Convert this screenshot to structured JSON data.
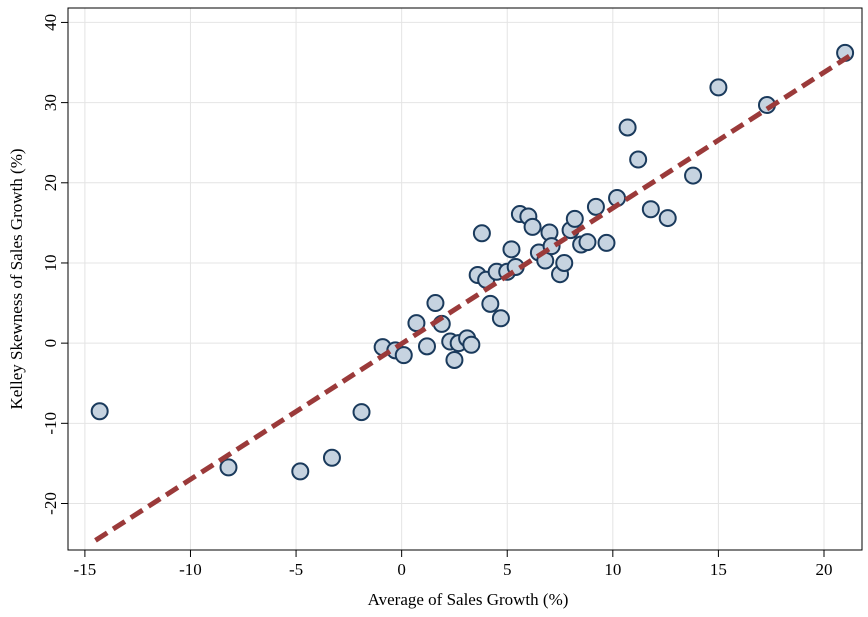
{
  "chart_data": {
    "type": "scatter",
    "xlabel": "Average of Sales Growth (%)",
    "ylabel": "Kelley Skewness of Sales Growth (%)",
    "x": [
      -14.3,
      -8.2,
      -4.8,
      -3.3,
      -1.9,
      -0.9,
      -0.3,
      0.1,
      0.7,
      1.2,
      1.6,
      1.9,
      2.3,
      2.5,
      2.7,
      3.1,
      3.3,
      3.6,
      3.8,
      4.0,
      4.2,
      4.5,
      4.7,
      5.0,
      5.2,
      5.4,
      5.6,
      6.0,
      6.2,
      6.5,
      6.8,
      7.0,
      7.1,
      7.5,
      7.7,
      8.0,
      8.2,
      8.5,
      8.8,
      9.2,
      9.7,
      10.2,
      10.7,
      11.2,
      11.8,
      12.6,
      13.8,
      15.0,
      17.3,
      21.0
    ],
    "values": [
      -8.5,
      -15.5,
      -16,
      -14.3,
      -8.6,
      -0.5,
      -0.9,
      -1.5,
      2.5,
      -0.4,
      5.0,
      2.4,
      0.2,
      -2.1,
      0,
      0.6,
      -0.2,
      8.5,
      13.7,
      7.9,
      4.9,
      8.9,
      3.1,
      8.9,
      11.7,
      9.5,
      16.1,
      15.8,
      14.5,
      11.3,
      10.3,
      13.8,
      12.1,
      8.6,
      10,
      14.1,
      15.5,
      12.3,
      12.6,
      17,
      12.5,
      18.1,
      26.9,
      22.9,
      16.7,
      15.6,
      20.9,
      31.9,
      29.7,
      36.2
    ],
    "color": "#c6d3e0",
    "edge_color": "#1a3a5c",
    "fit": {
      "x": [
        -14.5,
        21.2
      ],
      "values": [
        -24.6,
        35.8
      ],
      "color": "#9b3a3a"
    },
    "xlim": [
      -15.8,
      21.8
    ],
    "ylim": [
      -25.8,
      41.8
    ],
    "xticks": [
      -15,
      -10,
      -5,
      0,
      5,
      10,
      15,
      20
    ],
    "yticks": [
      -20,
      -10,
      0,
      10,
      20,
      30,
      40
    ],
    "grid": true
  }
}
